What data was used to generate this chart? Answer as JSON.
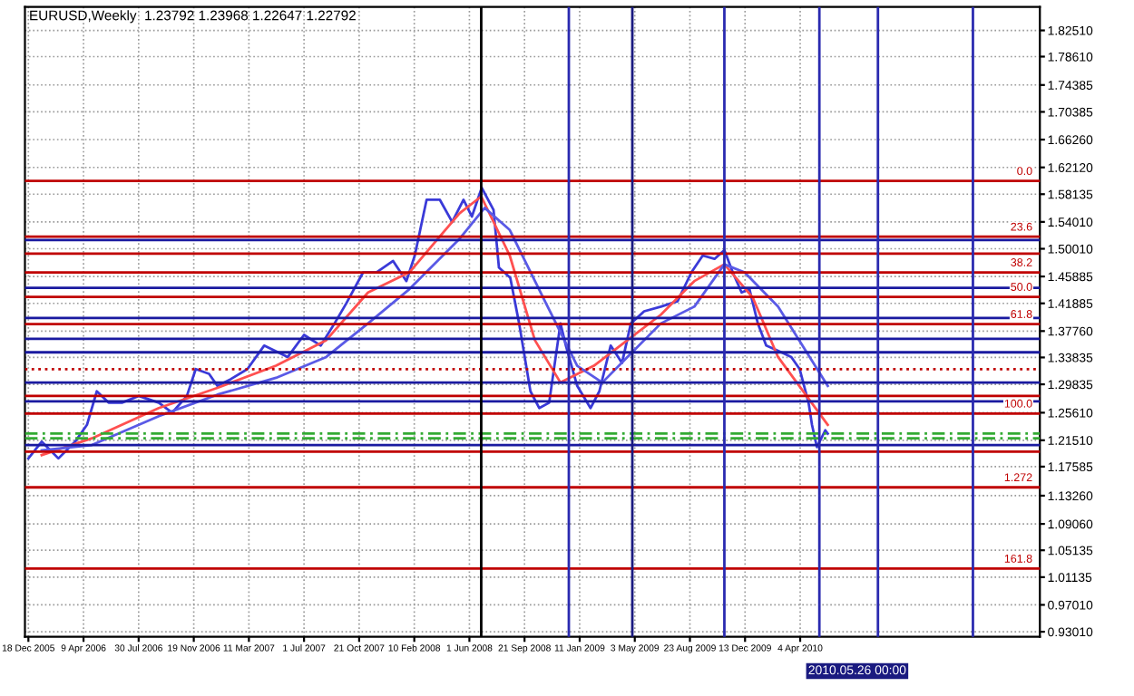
{
  "chart_data": {
    "type": "line",
    "title": "EURUSD,Weekly  1.23792 1.23968 1.22647 1.22792",
    "series": [
      {
        "color": "#3a3ad8",
        "x": [
          "2005-12-18",
          "2006-01-14",
          "2006-02-17",
          "2006-03-23",
          "2006-04-16",
          "2006-05-06",
          "2006-05-30",
          "2006-06-26",
          "2006-07-30",
          "2006-09-09",
          "2006-10-06",
          "2006-11-05",
          "2006-11-23",
          "2006-12-20",
          "2007-01-06",
          "2007-02-02",
          "2007-03-08",
          "2007-04-11",
          "2007-05-29",
          "2007-07-01",
          "2007-08-04",
          "2007-09-01",
          "2007-09-25",
          "2007-10-29",
          "2007-11-25",
          "2007-12-29",
          "2008-01-25",
          "2008-02-11",
          "2008-03-06",
          "2008-04-02",
          "2008-04-27",
          "2008-05-20",
          "2008-06-06",
          "2008-06-26",
          "2008-07-20",
          "2008-07-31",
          "2008-08-23",
          "2008-09-10",
          "2008-10-03",
          "2008-10-21",
          "2008-11-10",
          "2008-12-03",
          "2008-12-14",
          "2009-01-06",
          "2009-02-02",
          "2009-02-20",
          "2009-03-15",
          "2009-04-07",
          "2009-04-25",
          "2009-05-22",
          "2009-06-25",
          "2009-07-29",
          "2009-08-26",
          "2009-09-18",
          "2009-10-12",
          "2009-11-01",
          "2009-11-18",
          "2009-12-06",
          "2009-12-22",
          "2010-01-08",
          "2010-01-25",
          "2010-02-25",
          "2010-03-17",
          "2010-04-03",
          "2010-04-21",
          "2010-04-28",
          "2010-05-08",
          "2010-05-25",
          "2010-05-30"
        ],
        "values": [
          1.188,
          1.213,
          1.188,
          1.213,
          1.238,
          1.288,
          1.271,
          1.271,
          1.281,
          1.271,
          1.256,
          1.281,
          1.321,
          1.314,
          1.296,
          1.306,
          1.321,
          1.356,
          1.339,
          1.372,
          1.356,
          1.389,
          1.419,
          1.465,
          1.465,
          1.482,
          1.452,
          1.49,
          1.573,
          1.573,
          1.54,
          1.573,
          1.548,
          1.591,
          1.558,
          1.472,
          1.457,
          1.389,
          1.288,
          1.263,
          1.271,
          1.389,
          1.356,
          1.296,
          1.263,
          1.288,
          1.356,
          1.33,
          1.389,
          1.407,
          1.414,
          1.422,
          1.465,
          1.49,
          1.485,
          1.498,
          1.465,
          1.435,
          1.44,
          1.389,
          1.356,
          1.346,
          1.339,
          1.321,
          1.271,
          1.238,
          1.205,
          1.23,
          1.225
        ]
      },
      {
        "color": "#ff5050",
        "x": [
          "2006-01-14",
          "2006-04-26",
          "2006-09-09",
          "2007-01-06",
          "2007-05-05",
          "2007-08-15",
          "2007-11-08",
          "2008-01-31",
          "2008-05-12",
          "2008-06-25",
          "2008-08-22",
          "2008-10-12",
          "2008-12-03",
          "2009-02-09",
          "2009-04-18",
          "2009-06-25",
          "2009-09-01",
          "2009-11-01",
          "2009-12-29",
          "2010-02-18",
          "2010-05-30"
        ],
        "values": [
          1.193,
          1.218,
          1.263,
          1.293,
          1.326,
          1.364,
          1.435,
          1.465,
          1.553,
          1.578,
          1.49,
          1.364,
          1.301,
          1.326,
          1.364,
          1.402,
          1.452,
          1.477,
          1.427,
          1.339,
          1.238
        ]
      },
      {
        "color": "#5a5ae6",
        "x": [
          "2006-01-14",
          "2006-04-26",
          "2006-09-09",
          "2007-01-06",
          "2007-05-05",
          "2007-08-15",
          "2007-11-08",
          "2008-01-31",
          "2008-05-12",
          "2008-07-02",
          "2008-08-22",
          "2008-10-29",
          "2009-01-06",
          "2009-02-26",
          "2009-04-18",
          "2009-06-25",
          "2009-09-01",
          "2009-11-01",
          "2009-12-12",
          "2010-02-18",
          "2010-05-30"
        ],
        "values": [
          1.2,
          1.208,
          1.251,
          1.283,
          1.308,
          1.339,
          1.389,
          1.44,
          1.515,
          1.561,
          1.528,
          1.427,
          1.326,
          1.301,
          1.339,
          1.389,
          1.414,
          1.477,
          1.465,
          1.414,
          1.296
        ]
      }
    ],
    "xlim": [
      "2005-12-11",
      "2011-08-04"
    ],
    "xticks": [
      {
        "value": "2005-12-18",
        "label": "18 Dec 2005"
      },
      {
        "value": "2006-04-09",
        "label": "9 Apr 2006"
      },
      {
        "value": "2006-07-30",
        "label": "30 Jul 2006"
      },
      {
        "value": "2006-11-19",
        "label": "19 Nov 2006"
      },
      {
        "value": "2007-03-11",
        "label": "11 Mar 2007"
      },
      {
        "value": "2007-07-01",
        "label": "1 Jul 2007"
      },
      {
        "value": "2007-10-21",
        "label": "21 Oct 2007"
      },
      {
        "value": "2008-02-10",
        "label": "10 Feb 2008"
      },
      {
        "value": "2008-06-01",
        "label": "1 Jun 2008"
      },
      {
        "value": "2008-09-21",
        "label": "21 Sep 2008"
      },
      {
        "value": "2009-01-11",
        "label": "11 Jan 2009"
      },
      {
        "value": "2009-05-03",
        "label": "3 May 2009"
      },
      {
        "value": "2009-08-23",
        "label": "23 Aug 2009"
      },
      {
        "value": "2009-12-13",
        "label": "13 Dec 2009"
      },
      {
        "value": "2010-04-04",
        "label": "4 Apr 2010"
      }
    ],
    "ylim": [
      0.9225,
      1.86
    ],
    "yticks": [
      {
        "value": 1.8251,
        "label": "1.82510"
      },
      {
        "value": 1.7861,
        "label": "1.78610"
      },
      {
        "value": 1.74385,
        "label": "1.74385"
      },
      {
        "value": 1.70385,
        "label": "1.70385"
      },
      {
        "value": 1.6626,
        "label": "1.66260"
      },
      {
        "value": 1.6212,
        "label": "1.62120"
      },
      {
        "value": 1.58135,
        "label": "1.58135"
      },
      {
        "value": 1.5401,
        "label": "1.54010"
      },
      {
        "value": 1.5001,
        "label": "1.50010"
      },
      {
        "value": 1.45885,
        "label": "1.45885"
      },
      {
        "value": 1.41885,
        "label": "1.41885"
      },
      {
        "value": 1.3776,
        "label": "1.37760"
      },
      {
        "value": 1.33835,
        "label": "1.33835"
      },
      {
        "value": 1.29835,
        "label": "1.29835"
      },
      {
        "value": 1.2561,
        "label": "1.25610"
      },
      {
        "value": 1.2151,
        "label": "1.21510"
      },
      {
        "value": 1.17585,
        "label": "1.17585"
      },
      {
        "value": 1.1326,
        "label": "1.13260"
      },
      {
        "value": 1.0906,
        "label": "1.09060"
      },
      {
        "value": 1.05135,
        "label": "1.05135"
      },
      {
        "value": 1.01135,
        "label": "1.01135"
      },
      {
        "value": 0.9701,
        "label": "0.97010"
      },
      {
        "value": 0.9301,
        "label": "0.93010"
      }
    ],
    "ref_lines": [
      {
        "axis": "y",
        "value": 1.601,
        "color": "#c00000"
      },
      {
        "axis": "y",
        "value": 1.518,
        "color": "#c00000"
      },
      {
        "axis": "y",
        "value": 1.465,
        "color": "#c00000"
      },
      {
        "axis": "y",
        "value": 1.4285,
        "color": "#c00000"
      },
      {
        "axis": "y",
        "value": 1.388,
        "color": "#c00000"
      },
      {
        "axis": "y",
        "value": 1.2548,
        "color": "#c00000"
      },
      {
        "axis": "y",
        "value": 1.145,
        "color": "#c00000"
      },
      {
        "axis": "y",
        "value": 1.024,
        "color": "#c00000"
      },
      {
        "axis": "y",
        "value": 1.493,
        "color": "#c00000"
      },
      {
        "axis": "y",
        "value": 1.321,
        "color": "#c00000",
        "line_style": "dotted"
      },
      {
        "axis": "y",
        "value": 1.281,
        "color": "#c00000"
      },
      {
        "axis": "y",
        "value": 1.198,
        "color": "#c00000"
      },
      {
        "axis": "y",
        "value": 1.513,
        "color": "#1a1aa0"
      },
      {
        "axis": "y",
        "value": 1.442,
        "color": "#1a1aa0"
      },
      {
        "axis": "y",
        "value": 1.397,
        "color": "#1a1aa0"
      },
      {
        "axis": "y",
        "value": 1.366,
        "color": "#1a1aa0"
      },
      {
        "axis": "y",
        "value": 1.346,
        "color": "#1a1aa0"
      },
      {
        "axis": "y",
        "value": 1.301,
        "color": "#1a1aa0"
      },
      {
        "axis": "y",
        "value": 1.273,
        "color": "#1a1aa0"
      },
      {
        "axis": "y",
        "value": 1.208,
        "color": "#1a1aa0"
      },
      {
        "axis": "y",
        "value": 1.225,
        "color": "#33aa33",
        "line_style": "dashed"
      },
      {
        "axis": "y",
        "value": 1.218,
        "color": "#33aa33",
        "line_style": "dashed"
      },
      {
        "axis": "x",
        "value": "2008-06-25",
        "color": "#000000"
      },
      {
        "axis": "x",
        "value": "2008-12-20",
        "color": "#2a2ab0"
      },
      {
        "axis": "x",
        "value": "2009-04-28",
        "color": "#1a1a80"
      },
      {
        "axis": "x",
        "value": "2009-11-01",
        "color": "#2a2ab0"
      },
      {
        "axis": "x",
        "value": "2010-05-13",
        "color": "#2a2ab0"
      },
      {
        "axis": "x",
        "value": "2010-09-09",
        "color": "#2a2ab0"
      },
      {
        "axis": "x",
        "value": "2011-03-21",
        "color": "#2a2ab0"
      }
    ],
    "annotations": [
      "2010.05.26 00:00",
      {
        "text": "0.0",
        "x": "2011-07-20",
        "y": 1.601
      },
      {
        "text": "23.6",
        "x": "2011-07-20",
        "y": 1.518
      },
      {
        "text": "38.2",
        "x": "2011-07-20",
        "y": 1.465
      },
      {
        "text": "50.0",
        "x": "2011-07-20",
        "y": 1.4285
      },
      {
        "text": "61.8",
        "x": "2011-07-20",
        "y": 1.388
      },
      {
        "text": "100.0",
        "x": "2011-07-20",
        "y": 1.2548
      },
      {
        "text": "1.272",
        "x": "2011-07-20",
        "y": 1.145
      },
      {
        "text": "161.8",
        "x": "2011-07-20",
        "y": 1.024
      }
    ],
    "grid": true,
    "legend": false,
    "line_style": "solid",
    "marker": "none"
  }
}
